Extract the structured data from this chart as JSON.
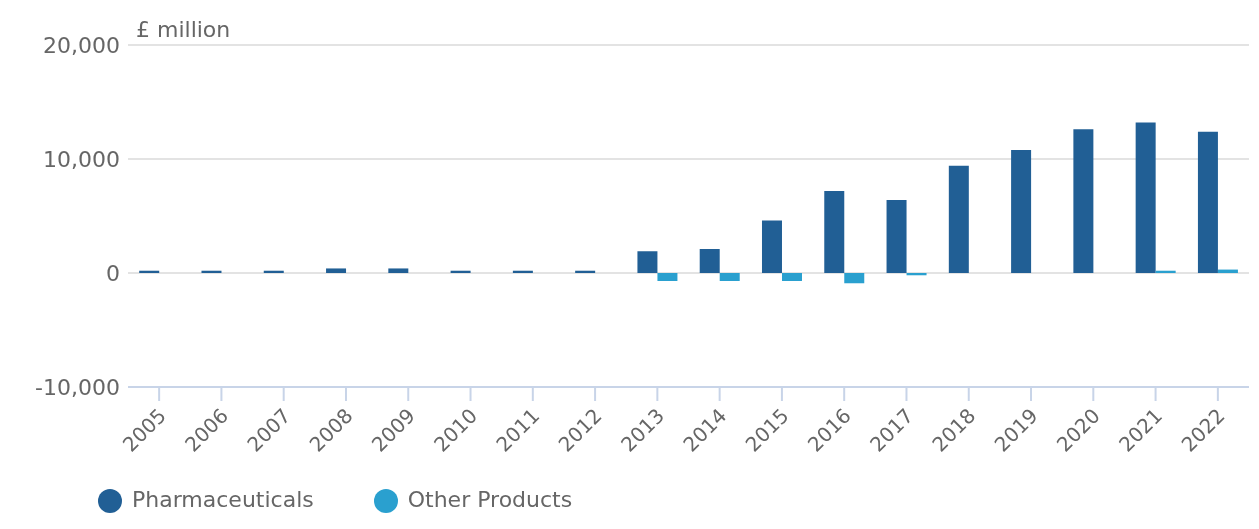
{
  "chart_data": {
    "type": "bar",
    "ylabel": "£ million",
    "categories": [
      "2005",
      "2006",
      "2007",
      "2008",
      "2009",
      "2010",
      "2011",
      "2012",
      "2013",
      "2014",
      "2015",
      "2016",
      "2017",
      "2018",
      "2019",
      "2020",
      "2021",
      "2022"
    ],
    "series": [
      {
        "name": "Pharmaceuticals",
        "color": "#215f95",
        "values": [
          200,
          200,
          200,
          400,
          400,
          200,
          200,
          200,
          1900,
          2100,
          4600,
          7200,
          6400,
          9400,
          10800,
          12600,
          13200,
          12400
        ]
      },
      {
        "name": "Other Products",
        "color": "#2aa0cf",
        "values": [
          0,
          0,
          0,
          0,
          0,
          0,
          0,
          0,
          -700,
          -700,
          -700,
          -900,
          -200,
          0,
          0,
          0,
          200,
          300
        ]
      }
    ],
    "ylim": [
      -10000,
      20000
    ],
    "yticks": [
      {
        "value": -10000,
        "label": "-10,000"
      },
      {
        "value": 0,
        "label": "0"
      },
      {
        "value": 10000,
        "label": "10,000"
      },
      {
        "value": 20000,
        "label": "20,000"
      }
    ],
    "grid": "y",
    "legend": "bottom left"
  }
}
